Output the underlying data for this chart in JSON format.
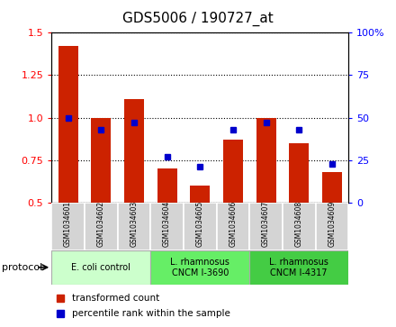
{
  "title": "GDS5006 / 190727_at",
  "samples": [
    "GSM1034601",
    "GSM1034602",
    "GSM1034603",
    "GSM1034604",
    "GSM1034605",
    "GSM1034606",
    "GSM1034607",
    "GSM1034608",
    "GSM1034609"
  ],
  "transformed_count": [
    1.42,
    1.0,
    1.11,
    0.7,
    0.6,
    0.87,
    1.0,
    0.85,
    0.68
  ],
  "percentile_rank": [
    50,
    43,
    47,
    27,
    21,
    43,
    47,
    43,
    23
  ],
  "ylim_left": [
    0.5,
    1.5
  ],
  "ylim_right": [
    0,
    100
  ],
  "yticks_left": [
    0.5,
    0.75,
    1.0,
    1.25,
    1.5
  ],
  "yticks_right": [
    0,
    25,
    50,
    75,
    100
  ],
  "bar_color": "#cc2200",
  "dot_color": "#0000cc",
  "plot_bg": "#ffffff",
  "group_colors": [
    "#ccffcc",
    "#66ee66",
    "#44cc44"
  ],
  "group_labels": [
    "E. coli control",
    "L. rhamnosus\nCNCM I-3690",
    "L. rhamnosus\nCNCM I-4317"
  ],
  "group_ranges": [
    [
      0,
      3
    ],
    [
      3,
      6
    ],
    [
      6,
      9
    ]
  ],
  "legend_labels": [
    "transformed count",
    "percentile rank within the sample"
  ],
  "legend_colors": [
    "#cc2200",
    "#0000cc"
  ]
}
